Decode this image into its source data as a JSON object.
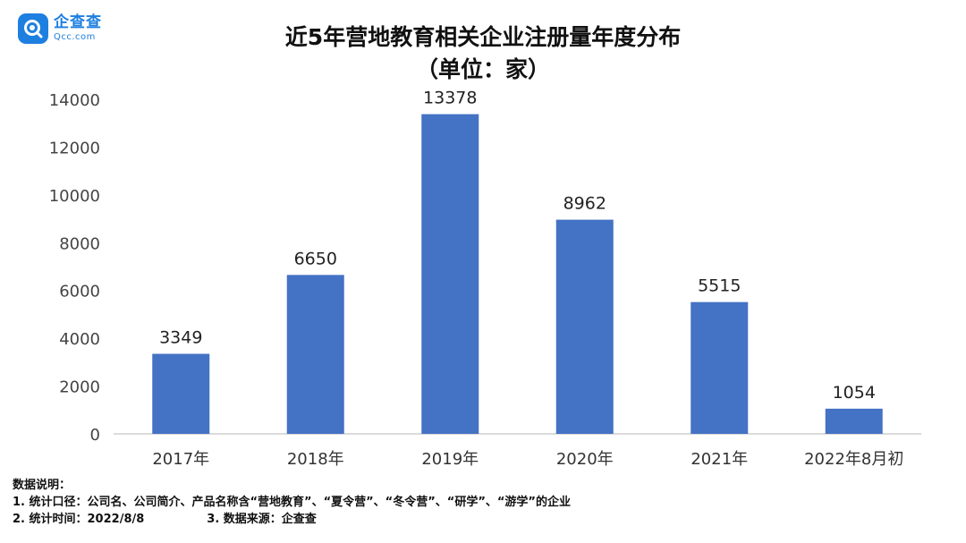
{
  "logo": {
    "cn": "企查查",
    "en": "Qcc.com"
  },
  "title": "近5年营地教育相关企业注册量年度分布",
  "subtitle": "（单位：家）",
  "chart_data": {
    "type": "bar",
    "title": "近5年营地教育相关企业注册量年度分布",
    "subtitle": "（单位：家）",
    "categories": [
      "2017年",
      "2018年",
      "2019年",
      "2020年",
      "2021年",
      "2022年8月初"
    ],
    "values": [
      3349,
      6650,
      13378,
      8962,
      5515,
      1054
    ],
    "ylim": [
      0,
      14000
    ],
    "yticks": [
      0,
      2000,
      4000,
      6000,
      8000,
      10000,
      12000,
      14000
    ],
    "grid": false,
    "legend": "none",
    "bar_color": "#4472c4"
  },
  "notes": {
    "heading": "数据说明：",
    "line1": "1. 统计口径：公司名、公司简介、产品名称含“营地教育”、“夏令营”、“冬令营”、“研学”、“游学”的企业",
    "line2a": "2. 统计时间：2022/8/8",
    "line2b": "3. 数据来源：企查查"
  }
}
